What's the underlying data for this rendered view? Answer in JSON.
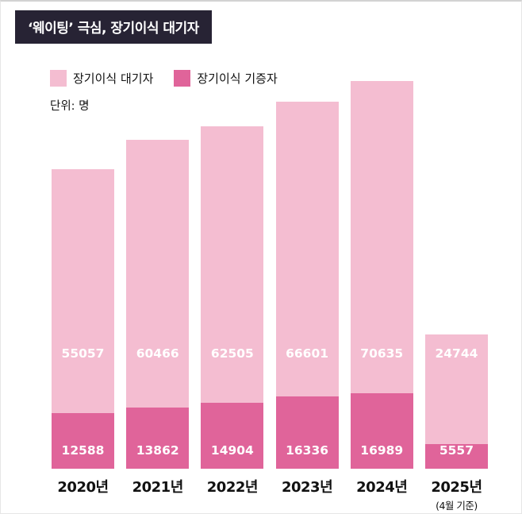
{
  "header": {
    "title": "‘웨이팅’ 극심, 장기이식 대기자"
  },
  "legend": {
    "items": [
      {
        "label": "장기이식 대기자",
        "color": "#f4bdd1"
      },
      {
        "label": "장기이식 기증자",
        "color": "#e0649a"
      }
    ]
  },
  "unit_label": "단위: 명",
  "chart_data": {
    "type": "bar",
    "stacked": true,
    "title": "‘웨이팅’ 극심, 장기이식 대기자",
    "unit": "명",
    "categories": [
      "2020년",
      "2021년",
      "2022년",
      "2023년",
      "2024년",
      "2025년"
    ],
    "category_notes": [
      "",
      "",
      "",
      "",
      "",
      "(4월 기준)"
    ],
    "series": [
      {
        "name": "장기이식 기증자",
        "color": "#e0649a",
        "values": [
          12588,
          13862,
          14904,
          16336,
          16989,
          5557
        ]
      },
      {
        "name": "장기이식 대기자",
        "color": "#f4bdd1",
        "values": [
          55057,
          60466,
          62505,
          66601,
          70635,
          24744
        ]
      }
    ],
    "ylim": [
      0,
      90000
    ],
    "grid": false,
    "legend_position": "top-left"
  }
}
